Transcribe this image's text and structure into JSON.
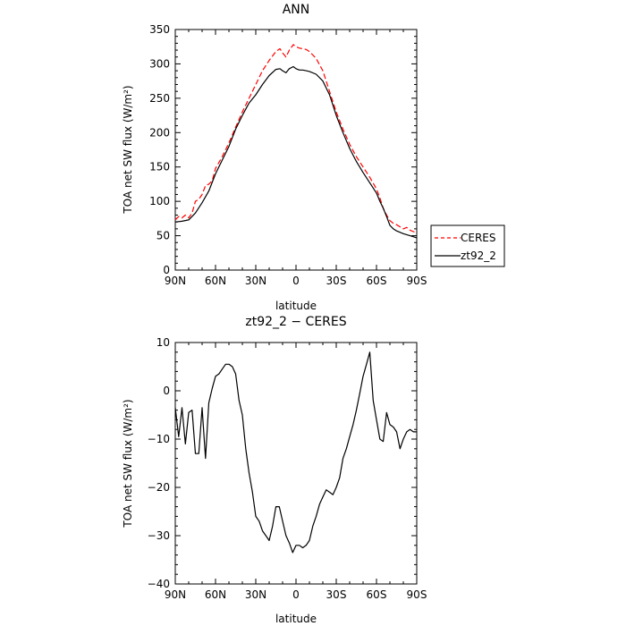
{
  "chart_data": [
    {
      "type": "line",
      "title": "ANN",
      "xlabel": "latitude",
      "ylabel": "TOA net SW flux (W/m²)",
      "xlim": [
        90,
        -90
      ],
      "ylim": [
        0,
        350
      ],
      "x_ticks": [
        90,
        60,
        30,
        0,
        -30,
        -60,
        -90
      ],
      "x_tick_labels": [
        "90N",
        "60N",
        "30N",
        "0",
        "30S",
        "60S",
        "90S"
      ],
      "y_ticks": [
        0,
        50,
        100,
        150,
        200,
        250,
        300,
        350
      ],
      "y_tick_labels": [
        "0",
        "50",
        "100",
        "150",
        "200",
        "250",
        "300",
        "350"
      ],
      "legend_position": "right",
      "series": [
        {
          "name": "CERES",
          "color": "#ff0000",
          "dash": "dashed",
          "x": [
            90,
            87.5,
            85,
            82.5,
            80,
            77.5,
            75,
            72.5,
            70,
            67.5,
            65,
            62.5,
            60,
            55,
            50,
            45,
            40,
            35,
            30,
            25,
            20,
            15,
            12,
            10,
            7.5,
            5,
            2,
            0,
            -2.5,
            -5,
            -7.5,
            -10,
            -15,
            -20,
            -25,
            -30,
            -35,
            -40,
            -45,
            -50,
            -55,
            -60,
            -62.5,
            -65,
            -67.5,
            -70,
            -72.5,
            -75,
            -77.5,
            -80,
            -82.5,
            -85,
            -87.5,
            -90
          ],
          "y": [
            73,
            78,
            76,
            80,
            76,
            83,
            100,
            103,
            110,
            123,
            125,
            130,
            148,
            165,
            185,
            208,
            230,
            250,
            270,
            290,
            305,
            318,
            322,
            316,
            310,
            320,
            328,
            325,
            323,
            322,
            321,
            318,
            308,
            290,
            260,
            230,
            205,
            183,
            165,
            150,
            135,
            118,
            105,
            90,
            80,
            72,
            68,
            66,
            63,
            60,
            62,
            58,
            56,
            54
          ]
        },
        {
          "name": "zt92_2",
          "color": "#000000",
          "dash": "solid",
          "x": [
            90,
            85,
            80,
            75,
            70,
            65,
            60,
            55,
            50,
            45,
            40,
            35,
            30,
            25,
            20,
            15,
            12,
            10,
            7.5,
            5,
            2,
            0,
            -2.5,
            -5,
            -7.5,
            -10,
            -15,
            -20,
            -25,
            -30,
            -35,
            -40,
            -45,
            -50,
            -55,
            -60,
            -62.5,
            -65,
            -67.5,
            -70,
            -72.5,
            -75,
            -80,
            -85,
            -90
          ],
          "y": [
            70,
            71,
            73,
            83,
            98,
            115,
            140,
            160,
            180,
            205,
            225,
            243,
            255,
            270,
            283,
            292,
            293,
            290,
            287,
            293,
            296,
            293,
            291,
            291,
            290,
            289,
            285,
            275,
            255,
            225,
            200,
            177,
            158,
            142,
            127,
            112,
            100,
            90,
            78,
            65,
            60,
            57,
            53,
            50,
            47
          ]
        }
      ]
    },
    {
      "type": "line",
      "title": "zt92_2 − CERES",
      "xlabel": "latitude",
      "ylabel": "TOA net SW flux (W/m²)",
      "xlim": [
        90,
        -90
      ],
      "ylim": [
        -40,
        10
      ],
      "x_ticks": [
        90,
        60,
        30,
        0,
        -30,
        -60,
        -90
      ],
      "x_tick_labels": [
        "90N",
        "60N",
        "30N",
        "0",
        "30S",
        "60S",
        "90S"
      ],
      "y_ticks": [
        -40,
        -30,
        -20,
        -10,
        0,
        10
      ],
      "y_tick_labels": [
        "−40",
        "−30",
        "−20",
        "−10",
        "0",
        "10"
      ],
      "series": [
        {
          "color": "#000000",
          "dash": "solid",
          "x": [
            90,
            87.5,
            85,
            82.5,
            80,
            77.5,
            75,
            72.5,
            70,
            67.5,
            65,
            62.5,
            60,
            57.5,
            55,
            52.5,
            50,
            47.5,
            45,
            42.5,
            40,
            37.5,
            35,
            32.5,
            30,
            27.5,
            25,
            22.5,
            20,
            17.5,
            15,
            12.5,
            10,
            7.5,
            5,
            2.5,
            0,
            -2.5,
            -5,
            -7.5,
            -10,
            -12.5,
            -15,
            -17.5,
            -20,
            -22.5,
            -25,
            -27.5,
            -30,
            -32.5,
            -35,
            -37.5,
            -40,
            -42.5,
            -45,
            -47.5,
            -50,
            -52.5,
            -55,
            -57.5,
            -60,
            -62.5,
            -65,
            -67.5,
            -70,
            -72.5,
            -75,
            -77.5,
            -80,
            -82.5,
            -85,
            -87.5,
            -90
          ],
          "y": [
            -3.5,
            -9.5,
            -3.5,
            -11,
            -4.5,
            -4,
            -13,
            -13,
            -3.5,
            -14,
            -2.5,
            0.5,
            3,
            3.5,
            4.5,
            5.5,
            5.5,
            5,
            3.5,
            -2,
            -5,
            -12,
            -17,
            -21,
            -26,
            -27,
            -29,
            -30,
            -31,
            -28,
            -24,
            -24,
            -27,
            -30,
            -31.5,
            -33.5,
            -32,
            -32,
            -32.5,
            -32,
            -31,
            -28,
            -26,
            -23.5,
            -22,
            -20.5,
            -21,
            -21.5,
            -20,
            -18,
            -14,
            -12,
            -9.5,
            -7,
            -4,
            -0.5,
            3,
            5.5,
            8,
            -2,
            -6,
            -10,
            -10.5,
            -4.5,
            -7,
            -7.5,
            -8.5,
            -12,
            -10,
            -8.5,
            -8,
            -8.5,
            -8.5
          ]
        }
      ]
    }
  ]
}
